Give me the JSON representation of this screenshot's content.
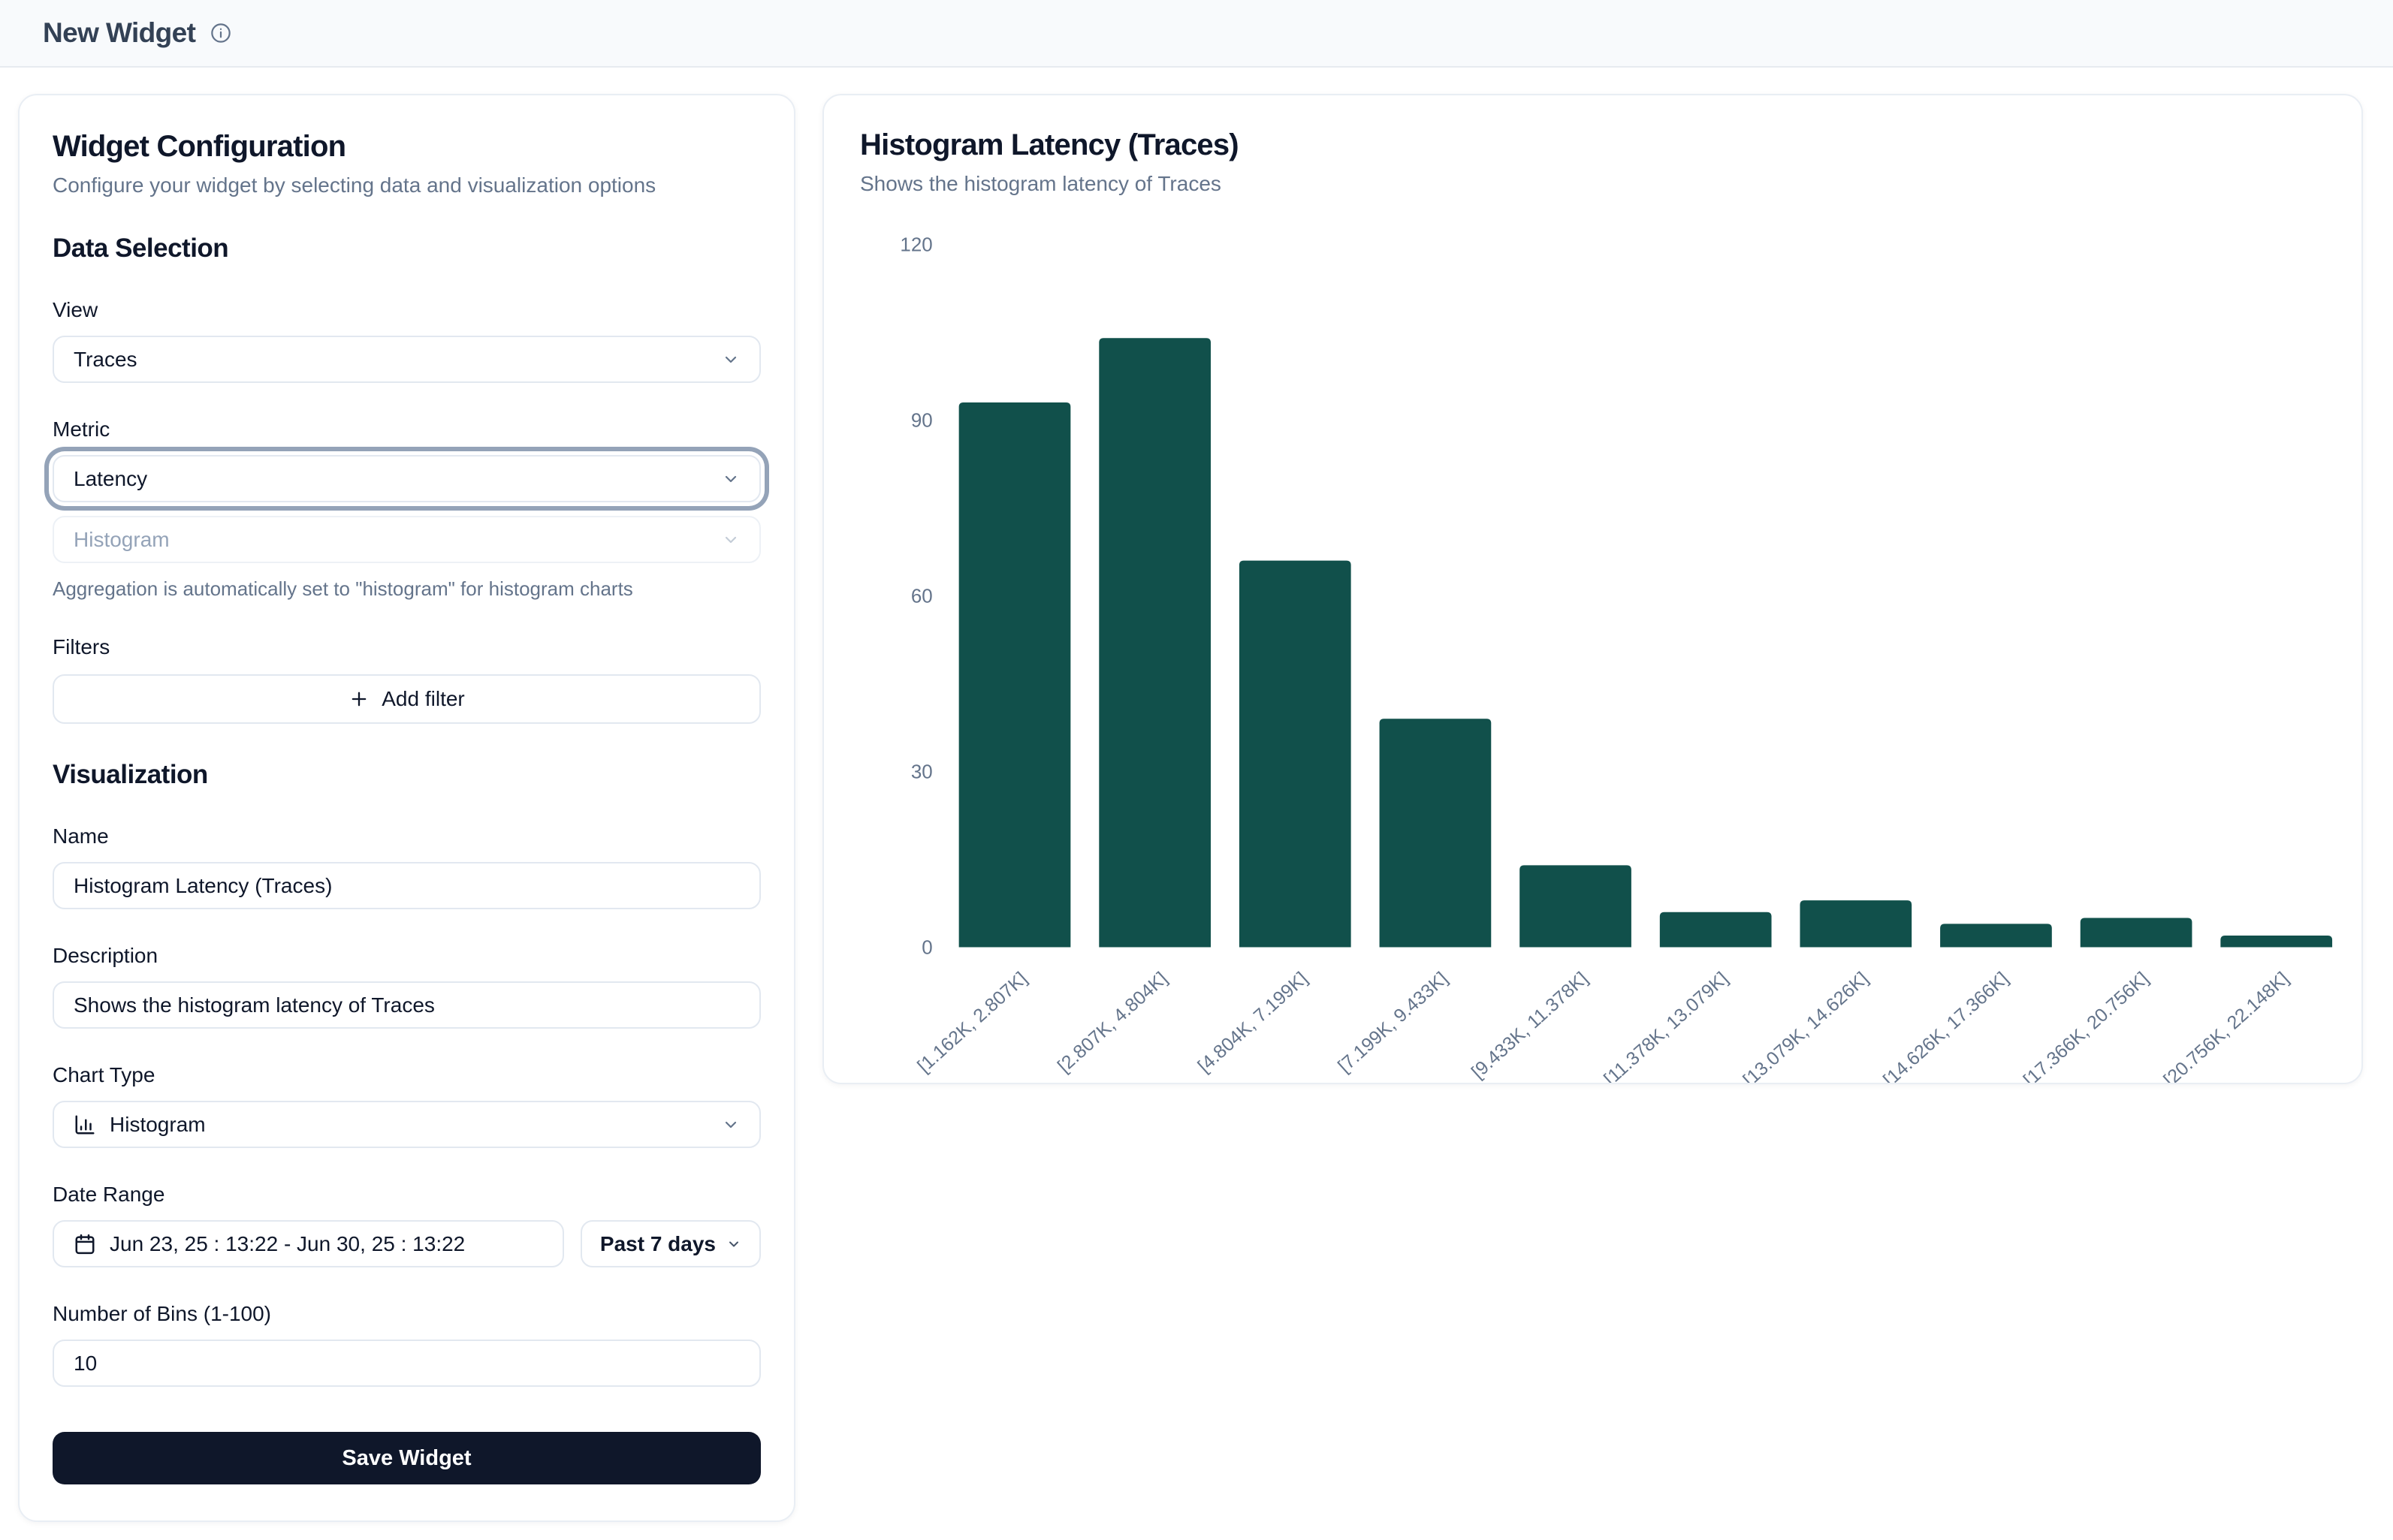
{
  "header": {
    "title": "New Widget"
  },
  "icons": {
    "header_info": "info-circle",
    "select_chevron": "chevron-down",
    "add_filter": "plus",
    "chart_type": "column-chart",
    "date": "calendar"
  },
  "config_panel": {
    "title": "Widget Configuration",
    "subtitle": "Configure your widget by selecting data and visualization options",
    "data_selection": {
      "heading": "Data Selection",
      "view_label": "View",
      "view_value": "Traces",
      "metric_label": "Metric",
      "metric_value": "Latency",
      "aggregation_value": "Histogram",
      "aggregation_note": "Aggregation is automatically set to \"histogram\" for histogram charts",
      "filters_label": "Filters",
      "add_filter_label": "Add filter"
    },
    "visualization": {
      "heading": "Visualization",
      "name_label": "Name",
      "name_value": "Histogram Latency (Traces)",
      "description_label": "Description",
      "description_value": "Shows the histogram latency of Traces",
      "chart_type_label": "Chart Type",
      "chart_type_value": "Histogram",
      "date_range_label": "Date Range",
      "date_range_value": "Jun 23, 25 : 13:22 - Jun 30, 25 : 13:22",
      "date_preset_value": "Past 7 days",
      "bins_label": "Number of Bins (1-100)",
      "bins_value": "10"
    },
    "save_button_label": "Save Widget"
  },
  "chart_panel": {
    "title": "Histogram Latency (Traces)",
    "subtitle": "Shows the histogram latency of Traces"
  },
  "chart_data": {
    "type": "bar",
    "title": "Histogram Latency (Traces)",
    "categories": [
      "[1.162K, 2.807K]",
      "[2.807K, 4.804K]",
      "[4.804K, 7.199K]",
      "[7.199K, 9.433K]",
      "[9.433K, 11.378K]",
      "[11.378K, 13.079K]",
      "[13.079K, 14.626K]",
      "[14.626K, 17.366K]",
      "[17.366K, 20.756K]",
      "[20.756K, 22.148K]"
    ],
    "values": [
      93,
      104,
      66,
      39,
      14,
      6,
      8,
      4,
      5,
      2
    ],
    "xlabel": "",
    "ylabel": "",
    "ylim": [
      0,
      120
    ],
    "yticks": [
      0,
      30,
      60,
      90,
      120
    ],
    "grid": false,
    "legend": false,
    "bar_color": "#11504b",
    "axis_label_color": "#64748b"
  },
  "colors": {
    "header_bg": "#f8fafc",
    "card_border": "#e9eef4",
    "accent_dark": "#0f172a",
    "muted_text": "#64748b",
    "focus_ring": "#94a3b8",
    "bar": "#11504b"
  }
}
